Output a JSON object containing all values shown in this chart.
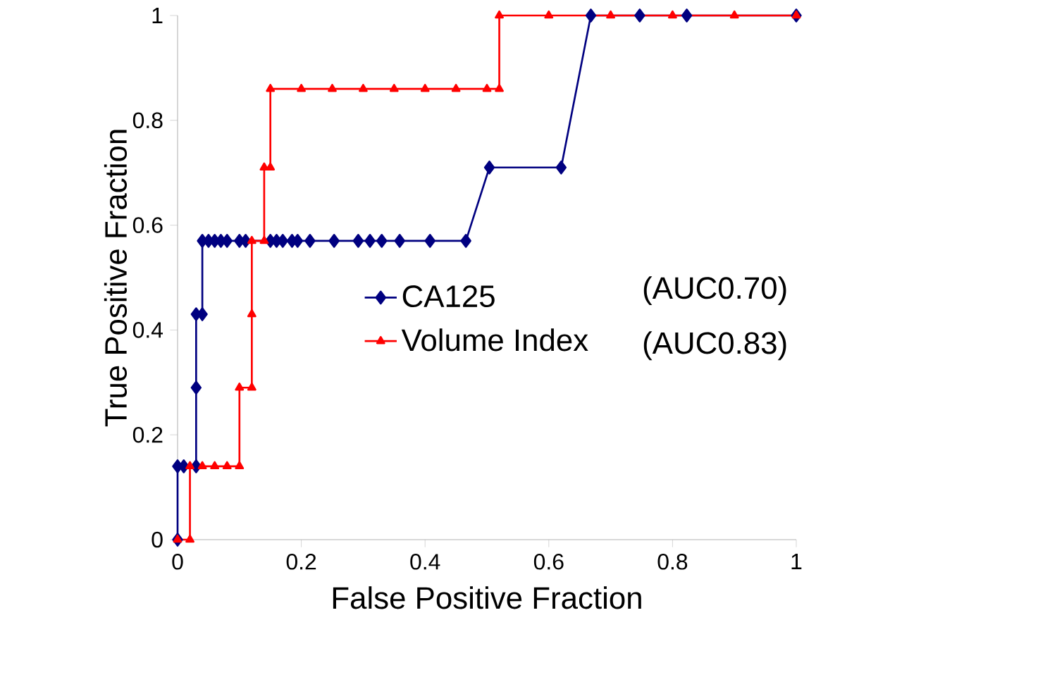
{
  "chart_data": {
    "type": "line",
    "xlabel": "False Positive Fraction",
    "ylabel": "True Positive Fraction",
    "xlim": [
      0,
      1
    ],
    "ylim": [
      0,
      1
    ],
    "xticks": [
      0,
      0.2,
      0.4,
      0.6,
      0.8,
      1
    ],
    "yticks": [
      0,
      0.2,
      0.4,
      0.6,
      0.8,
      1
    ],
    "grid": false,
    "legend": "right",
    "line_style": "solid",
    "annotations": [
      "(AUC0.70)",
      "(AUC0.83)"
    ],
    "series": [
      {
        "name": "CA125",
        "color": "#000080",
        "marker": "diamond",
        "x": [
          0,
          0,
          0.01,
          0.03,
          0.03,
          0.03,
          0.04,
          0.04,
          0.05,
          0.06,
          0.07,
          0.08,
          0.1,
          0.11,
          0.15,
          0.16,
          0.17,
          0.185,
          0.194,
          0.214,
          0.253,
          0.292,
          0.311,
          0.33,
          0.359,
          0.408,
          0.466,
          0.504,
          0.62,
          0.668,
          0.747,
          0.823,
          1
        ],
        "values": [
          0,
          0.14,
          0.14,
          0.14,
          0.29,
          0.43,
          0.43,
          0.57,
          0.57,
          0.57,
          0.57,
          0.57,
          0.57,
          0.57,
          0.57,
          0.57,
          0.57,
          0.57,
          0.57,
          0.57,
          0.57,
          0.57,
          0.57,
          0.57,
          0.57,
          0.57,
          0.57,
          0.71,
          0.71,
          1,
          1,
          1,
          1
        ]
      },
      {
        "name": "Volume Index",
        "color": "#ff0000",
        "marker": "triangle",
        "x": [
          0,
          0.02,
          0.02,
          0.04,
          0.06,
          0.08,
          0.1,
          0.1,
          0.12,
          0.12,
          0.12,
          0.14,
          0.14,
          0.15,
          0.15,
          0.2,
          0.25,
          0.3,
          0.35,
          0.4,
          0.45,
          0.5,
          0.52,
          0.52,
          0.6,
          0.7,
          0.8,
          0.9,
          1
        ],
        "values": [
          0,
          0,
          0.14,
          0.14,
          0.14,
          0.14,
          0.14,
          0.29,
          0.29,
          0.43,
          0.57,
          0.57,
          0.71,
          0.71,
          0.86,
          0.86,
          0.86,
          0.86,
          0.86,
          0.86,
          0.86,
          0.86,
          0.86,
          1,
          1,
          1,
          1,
          1,
          1
        ]
      }
    ]
  }
}
